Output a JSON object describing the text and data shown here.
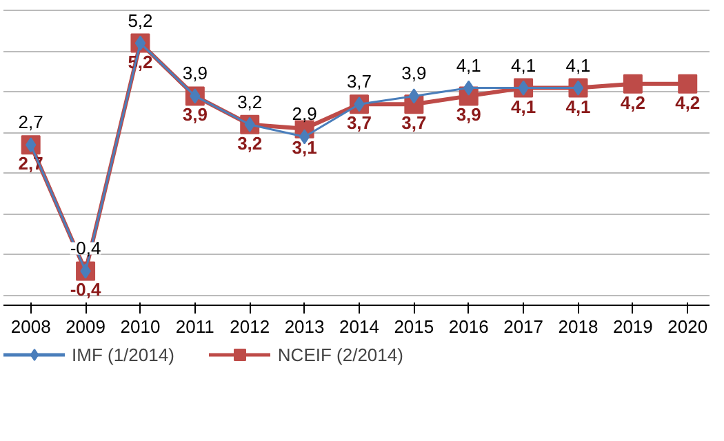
{
  "chart_data": {
    "type": "line",
    "categories": [
      "2008",
      "2009",
      "2010",
      "2011",
      "2012",
      "2013",
      "2014",
      "2015",
      "2016",
      "2017",
      "2018",
      "2019",
      "2020"
    ],
    "series": [
      {
        "name": "IMF (1/2014)",
        "color": "#4a7ebb",
        "marker": "diamond",
        "values": [
          2.7,
          -0.4,
          5.2,
          3.9,
          3.2,
          2.9,
          3.7,
          3.9,
          4.1,
          4.1,
          4.1,
          null,
          null
        ],
        "value_labels": [
          "2,7",
          "-0,4",
          "5,2",
          "3,9",
          "3,2",
          "2,9",
          "3,7",
          "3,9",
          "4,1",
          "4,1",
          "4,1",
          null,
          null
        ]
      },
      {
        "name": "NCEIF (2/2014)",
        "color": "#be4b48",
        "marker": "square",
        "values": [
          2.7,
          -0.4,
          5.2,
          3.9,
          3.2,
          3.1,
          3.7,
          3.7,
          3.9,
          4.1,
          4.1,
          4.2,
          4.2
        ],
        "value_labels": [
          "2,7",
          "-0,4",
          "5,2",
          "3,9",
          "3,2",
          "3,1",
          "3,7",
          "3,7",
          "3,9",
          "4,1",
          "4,1",
          "4,2",
          "4,2"
        ]
      }
    ],
    "tick_labels": "x",
    "grid": "y",
    "legend": "bottom"
  }
}
